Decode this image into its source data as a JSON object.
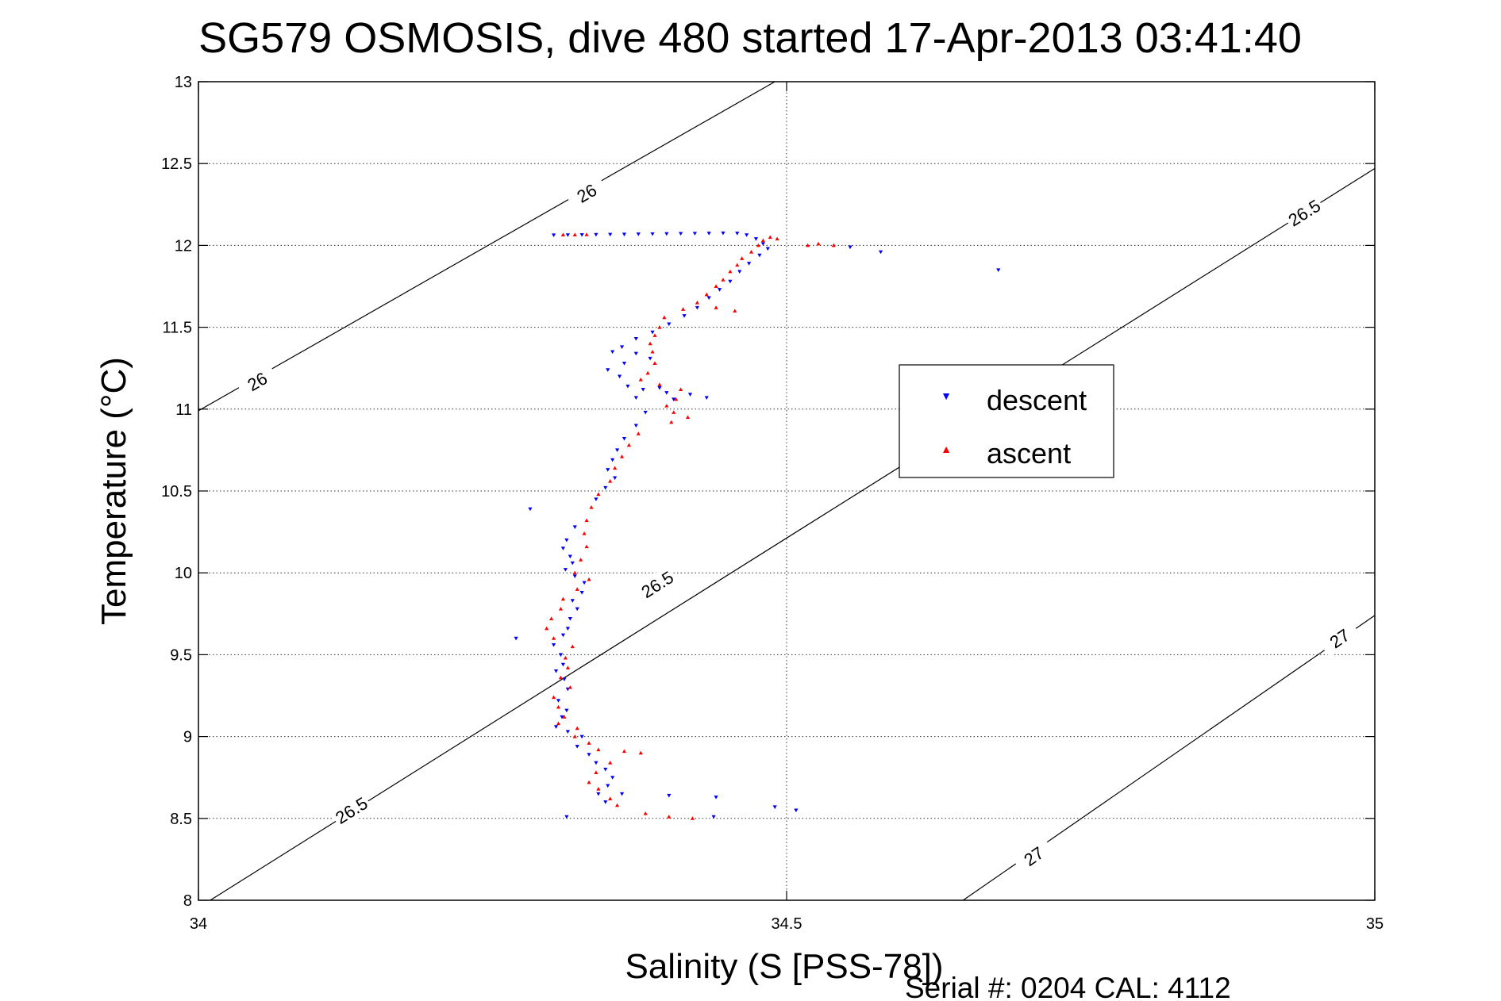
{
  "chart_data": {
    "type": "scatter",
    "title": "SG579 OSMOSIS, dive 480 started 17-Apr-2013 03:41:40",
    "xlabel": "Salinity (S [PSS-78])",
    "ylabel": "Temperature (°C)",
    "footer": "Serial #: 0204  CAL: 4112",
    "xlim": [
      34,
      35
    ],
    "ylim": [
      8,
      13
    ],
    "xticks": [
      "34",
      "34.5",
      "35"
    ],
    "yticks": [
      "8",
      "8.5",
      "9",
      "9.5",
      "10",
      "10.5",
      "11",
      "11.5",
      "12",
      "12.5",
      "13"
    ],
    "grid": true,
    "legend_position": "center-right",
    "isopycnals": [
      {
        "value": 26,
        "label": "26",
        "line": [
          [
            34.0,
            10.99
          ],
          [
            34.49,
            13.0
          ]
        ],
        "labels": [
          [
            34.05,
            11.17
          ],
          [
            34.33,
            12.32
          ]
        ]
      },
      {
        "value": 26.5,
        "label": "26.5",
        "line": [
          [
            34.01,
            8.0
          ],
          [
            35.0,
            12.47
          ]
        ],
        "labels": [
          [
            34.13,
            8.55
          ],
          [
            34.39,
            9.93
          ],
          [
            34.94,
            12.2
          ]
        ]
      },
      {
        "value": 27,
        "label": "27",
        "line": [
          [
            34.65,
            8.0
          ],
          [
            35.0,
            9.74
          ]
        ],
        "labels": [
          [
            34.71,
            8.27
          ],
          [
            34.97,
            9.6
          ]
        ]
      }
    ],
    "series": [
      {
        "name": "descent",
        "color": "#0000ff",
        "marker": "triangle-down",
        "points": [
          [
            34.302,
            12.063
          ],
          [
            34.314,
            12.064
          ],
          [
            34.326,
            12.065
          ],
          [
            34.338,
            12.066
          ],
          [
            34.35,
            12.067
          ],
          [
            34.362,
            12.068
          ],
          [
            34.374,
            12.069
          ],
          [
            34.386,
            12.07
          ],
          [
            34.398,
            12.071
          ],
          [
            34.41,
            12.072
          ],
          [
            34.422,
            12.073
          ],
          [
            34.434,
            12.074
          ],
          [
            34.446,
            12.075
          ],
          [
            34.458,
            12.074
          ],
          [
            34.466,
            12.064
          ],
          [
            34.474,
            12.04
          ],
          [
            34.48,
            12.01
          ],
          [
            34.484,
            11.98
          ],
          [
            34.477,
            11.94
          ],
          [
            34.468,
            11.89
          ],
          [
            34.46,
            11.84
          ],
          [
            34.452,
            11.78
          ],
          [
            34.443,
            11.73
          ],
          [
            34.434,
            11.68
          ],
          [
            34.424,
            11.62
          ],
          [
            34.413,
            11.57
          ],
          [
            34.4,
            11.52
          ],
          [
            34.386,
            11.47
          ],
          [
            34.372,
            11.43
          ],
          [
            34.36,
            11.38
          ],
          [
            34.372,
            11.34
          ],
          [
            34.384,
            11.31
          ],
          [
            34.362,
            11.28
          ],
          [
            34.348,
            11.24
          ],
          [
            34.358,
            11.2
          ],
          [
            34.365,
            11.14
          ],
          [
            34.378,
            11.12
          ],
          [
            34.398,
            11.1
          ],
          [
            34.418,
            11.09
          ],
          [
            34.432,
            11.07
          ],
          [
            34.404,
            11.06
          ],
          [
            34.392,
            11.13
          ],
          [
            34.372,
            11.07
          ],
          [
            34.554,
            11.99
          ],
          [
            34.58,
            11.96
          ],
          [
            34.68,
            11.85
          ],
          [
            34.352,
            11.35
          ],
          [
            34.38,
            10.98
          ],
          [
            34.372,
            10.9
          ],
          [
            34.362,
            10.82
          ],
          [
            34.356,
            10.75
          ],
          [
            34.352,
            10.69
          ],
          [
            34.348,
            10.63
          ],
          [
            34.354,
            10.58
          ],
          [
            34.346,
            10.52
          ],
          [
            34.338,
            10.45
          ],
          [
            34.282,
            10.39
          ],
          [
            34.32,
            10.28
          ],
          [
            34.313,
            10.2
          ],
          [
            34.31,
            10.15
          ],
          [
            34.316,
            10.1
          ],
          [
            34.318,
            10.06
          ],
          [
            34.312,
            10.02
          ],
          [
            34.32,
            9.98
          ],
          [
            34.328,
            9.94
          ],
          [
            34.326,
            9.88
          ],
          [
            34.318,
            9.83
          ],
          [
            34.322,
            9.78
          ],
          [
            34.316,
            9.72
          ],
          [
            34.314,
            9.66
          ],
          [
            34.31,
            9.62
          ],
          [
            34.27,
            9.6
          ],
          [
            34.302,
            9.56
          ],
          [
            34.308,
            9.5
          ],
          [
            34.31,
            9.44
          ],
          [
            34.304,
            9.4
          ],
          [
            34.311,
            9.35
          ],
          [
            34.314,
            9.29
          ],
          [
            34.306,
            9.22
          ],
          [
            34.313,
            9.16
          ],
          [
            34.309,
            9.12
          ],
          [
            34.304,
            9.06
          ],
          [
            34.314,
            9.03
          ],
          [
            34.326,
            9.0
          ],
          [
            34.322,
            8.94
          ],
          [
            34.332,
            8.89
          ],
          [
            34.338,
            8.84
          ],
          [
            34.346,
            8.8
          ],
          [
            34.352,
            8.75
          ],
          [
            34.348,
            8.7
          ],
          [
            34.34,
            8.65
          ],
          [
            34.346,
            8.6
          ],
          [
            34.36,
            8.65
          ],
          [
            34.4,
            8.64
          ],
          [
            34.44,
            8.63
          ],
          [
            34.49,
            8.57
          ],
          [
            34.508,
            8.55
          ],
          [
            34.438,
            8.51
          ],
          [
            34.313,
            8.51
          ]
        ]
      },
      {
        "name": "ascent",
        "color": "#ff0000",
        "marker": "triangle-up",
        "points": [
          [
            34.518,
            12.0
          ],
          [
            34.527,
            12.01
          ],
          [
            34.54,
            12.0
          ],
          [
            34.31,
            12.065
          ],
          [
            34.32,
            12.065
          ],
          [
            34.33,
            12.066
          ],
          [
            34.486,
            12.05
          ],
          [
            34.492,
            12.04
          ],
          [
            34.48,
            12.03
          ],
          [
            34.476,
            12.0
          ],
          [
            34.47,
            11.96
          ],
          [
            34.462,
            11.92
          ],
          [
            34.458,
            11.88
          ],
          [
            34.452,
            11.84
          ],
          [
            34.446,
            11.79
          ],
          [
            34.44,
            11.75
          ],
          [
            34.432,
            11.7
          ],
          [
            34.424,
            11.65
          ],
          [
            34.412,
            11.61
          ],
          [
            34.44,
            11.62
          ],
          [
            34.456,
            11.6
          ],
          [
            34.396,
            11.56
          ],
          [
            34.392,
            11.5
          ],
          [
            34.388,
            11.45
          ],
          [
            34.384,
            11.4
          ],
          [
            34.386,
            11.35
          ],
          [
            34.388,
            11.28
          ],
          [
            34.382,
            11.22
          ],
          [
            34.376,
            11.18
          ],
          [
            34.392,
            11.15
          ],
          [
            34.41,
            11.12
          ],
          [
            34.406,
            11.06
          ],
          [
            34.398,
            11.02
          ],
          [
            34.404,
            10.98
          ],
          [
            34.416,
            10.95
          ],
          [
            34.402,
            10.92
          ],
          [
            34.374,
            10.85
          ],
          [
            34.366,
            10.78
          ],
          [
            34.36,
            10.71
          ],
          [
            34.354,
            10.64
          ],
          [
            34.35,
            10.56
          ],
          [
            34.34,
            10.48
          ],
          [
            34.334,
            10.4
          ],
          [
            34.33,
            10.32
          ],
          [
            34.328,
            10.24
          ],
          [
            34.33,
            10.16
          ],
          [
            34.325,
            10.08
          ],
          [
            34.32,
            10.0
          ],
          [
            34.332,
            9.96
          ],
          [
            34.322,
            9.9
          ],
          [
            34.31,
            9.84
          ],
          [
            34.308,
            9.78
          ],
          [
            34.3,
            9.72
          ],
          [
            34.296,
            9.66
          ],
          [
            34.302,
            9.6
          ],
          [
            34.318,
            9.55
          ],
          [
            34.312,
            9.48
          ],
          [
            34.314,
            9.42
          ],
          [
            34.308,
            9.36
          ],
          [
            34.316,
            9.3
          ],
          [
            34.302,
            9.24
          ],
          [
            34.306,
            9.18
          ],
          [
            34.311,
            9.12
          ],
          [
            34.306,
            9.08
          ],
          [
            34.322,
            9.05
          ],
          [
            34.32,
            9.0
          ],
          [
            34.332,
            8.96
          ],
          [
            34.34,
            8.92
          ],
          [
            34.362,
            8.91
          ],
          [
            34.376,
            8.9
          ],
          [
            34.35,
            8.84
          ],
          [
            34.338,
            8.78
          ],
          [
            34.332,
            8.72
          ],
          [
            34.34,
            8.68
          ],
          [
            34.35,
            8.62
          ],
          [
            34.356,
            8.58
          ],
          [
            34.38,
            8.53
          ],
          [
            34.4,
            8.51
          ],
          [
            34.42,
            8.5
          ]
        ]
      }
    ]
  }
}
